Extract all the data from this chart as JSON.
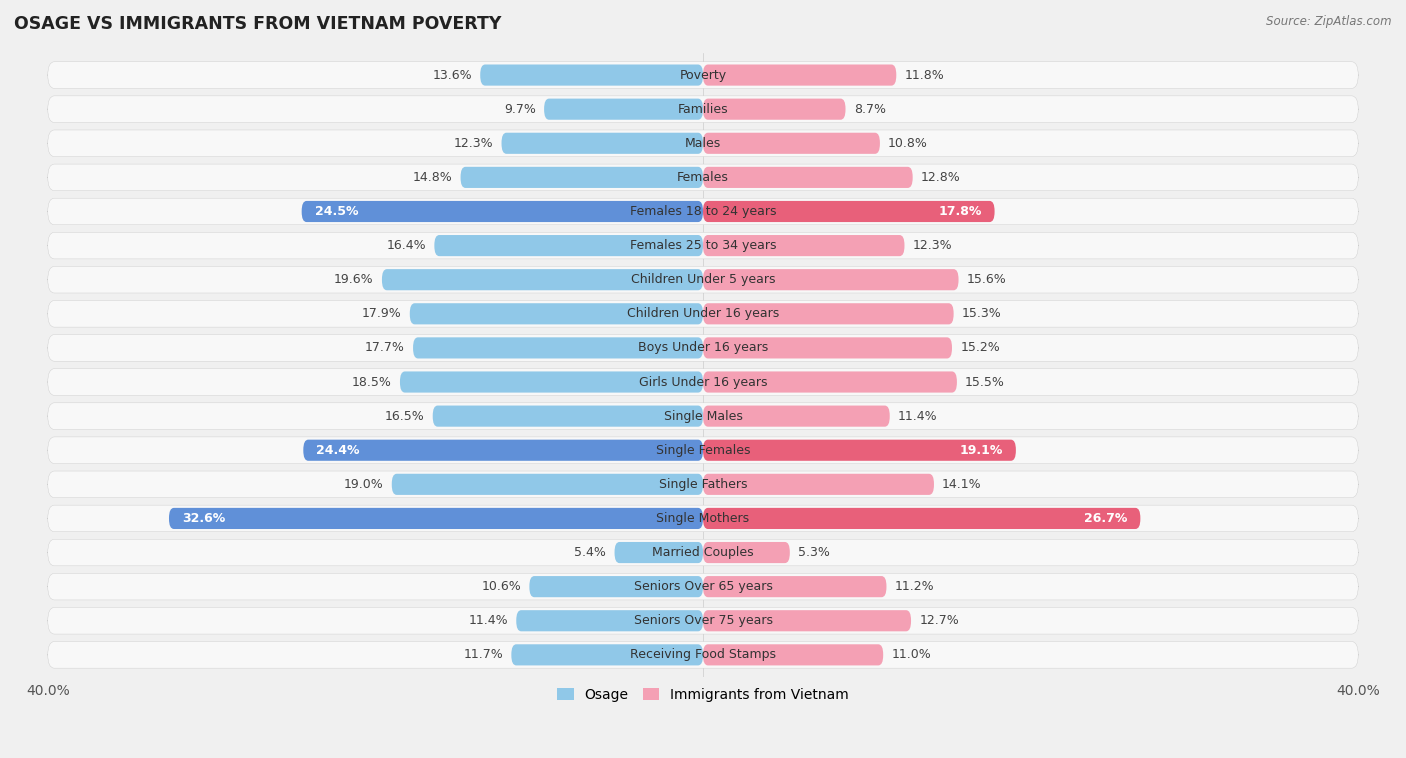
{
  "title": "OSAGE VS IMMIGRANTS FROM VIETNAM POVERTY",
  "source": "Source: ZipAtlas.com",
  "categories": [
    "Poverty",
    "Families",
    "Males",
    "Females",
    "Females 18 to 24 years",
    "Females 25 to 34 years",
    "Children Under 5 years",
    "Children Under 16 years",
    "Boys Under 16 years",
    "Girls Under 16 years",
    "Single Males",
    "Single Females",
    "Single Fathers",
    "Single Mothers",
    "Married Couples",
    "Seniors Over 65 years",
    "Seniors Over 75 years",
    "Receiving Food Stamps"
  ],
  "osage": [
    13.6,
    9.7,
    12.3,
    14.8,
    24.5,
    16.4,
    19.6,
    17.9,
    17.7,
    18.5,
    16.5,
    24.4,
    19.0,
    32.6,
    5.4,
    10.6,
    11.4,
    11.7
  ],
  "vietnam": [
    11.8,
    8.7,
    10.8,
    12.8,
    17.8,
    12.3,
    15.6,
    15.3,
    15.2,
    15.5,
    11.4,
    19.1,
    14.1,
    26.7,
    5.3,
    11.2,
    12.7,
    11.0
  ],
  "osage_color": "#90c8e8",
  "vietnam_color": "#f4a0b4",
  "osage_highlight_color": "#6090d8",
  "vietnam_highlight_color": "#e8607a",
  "highlight_rows": [
    4,
    11,
    13
  ],
  "background_color": "#f0f0f0",
  "row_bg_color": "#e8e8e8",
  "bar_bg_color": "#f8f8f8",
  "axis_limit": 40.0,
  "legend_osage": "Osage",
  "legend_vietnam": "Immigrants from Vietnam"
}
